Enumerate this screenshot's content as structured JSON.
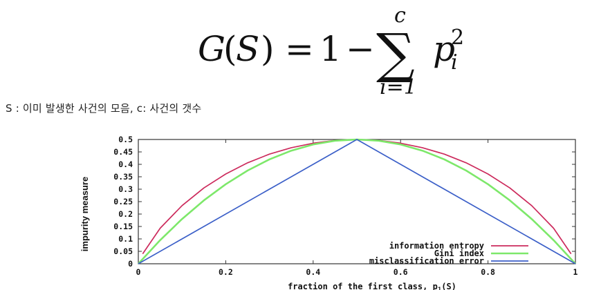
{
  "formula": {
    "lhs_func": "G",
    "lhs_arg": "S",
    "one": "1",
    "minus": "−",
    "sum_symbol": "∑",
    "sum_upper": "c",
    "sum_lower": "i=1",
    "term_base": "p",
    "term_sub": "i",
    "term_sup": "2"
  },
  "caption": "S : 이미 발생한 사건의 모음, c: 사건의 갯수",
  "chart_data": {
    "type": "line",
    "xlabel": "fraction of the first class, p",
    "xlabel_sub": "1",
    "xlabel_tail": "(S)",
    "ylabel": "impurity measure",
    "xlim": [
      0,
      1
    ],
    "ylim": [
      0,
      0.5
    ],
    "xticks": [
      "0",
      "0.2",
      "0.4",
      "0.6",
      "0.8",
      "1"
    ],
    "yticks": [
      "0",
      "0.05",
      "0.1",
      "0.15",
      "0.2",
      "0.25",
      "0.3",
      "0.35",
      "0.4",
      "0.45",
      "0.5"
    ],
    "legend_position": "bottom-right",
    "series": [
      {
        "name": "information entropy",
        "color": "#cc2a5c",
        "x": [
          0.01,
          0.05,
          0.1,
          0.15,
          0.2,
          0.25,
          0.3,
          0.35,
          0.4,
          0.45,
          0.5,
          0.55,
          0.6,
          0.65,
          0.7,
          0.75,
          0.8,
          0.85,
          0.9,
          0.95,
          0.99
        ],
        "values": [
          0.04,
          0.143,
          0.234,
          0.305,
          0.361,
          0.406,
          0.441,
          0.467,
          0.485,
          0.496,
          0.5,
          0.496,
          0.485,
          0.467,
          0.441,
          0.406,
          0.361,
          0.305,
          0.234,
          0.143,
          0.04
        ]
      },
      {
        "name": "Gini index",
        "color": "#7de86a",
        "x": [
          0,
          0.05,
          0.1,
          0.15,
          0.2,
          0.25,
          0.3,
          0.35,
          0.4,
          0.45,
          0.5,
          0.55,
          0.6,
          0.65,
          0.7,
          0.75,
          0.8,
          0.85,
          0.9,
          0.95,
          1
        ],
        "values": [
          0,
          0.095,
          0.18,
          0.255,
          0.32,
          0.375,
          0.42,
          0.455,
          0.48,
          0.495,
          0.5,
          0.495,
          0.48,
          0.455,
          0.42,
          0.375,
          0.32,
          0.255,
          0.18,
          0.095,
          0
        ]
      },
      {
        "name": "misclassification error",
        "color": "#3b5fc8",
        "x": [
          0,
          0.5,
          1
        ],
        "values": [
          0,
          0.5,
          0
        ]
      }
    ]
  }
}
